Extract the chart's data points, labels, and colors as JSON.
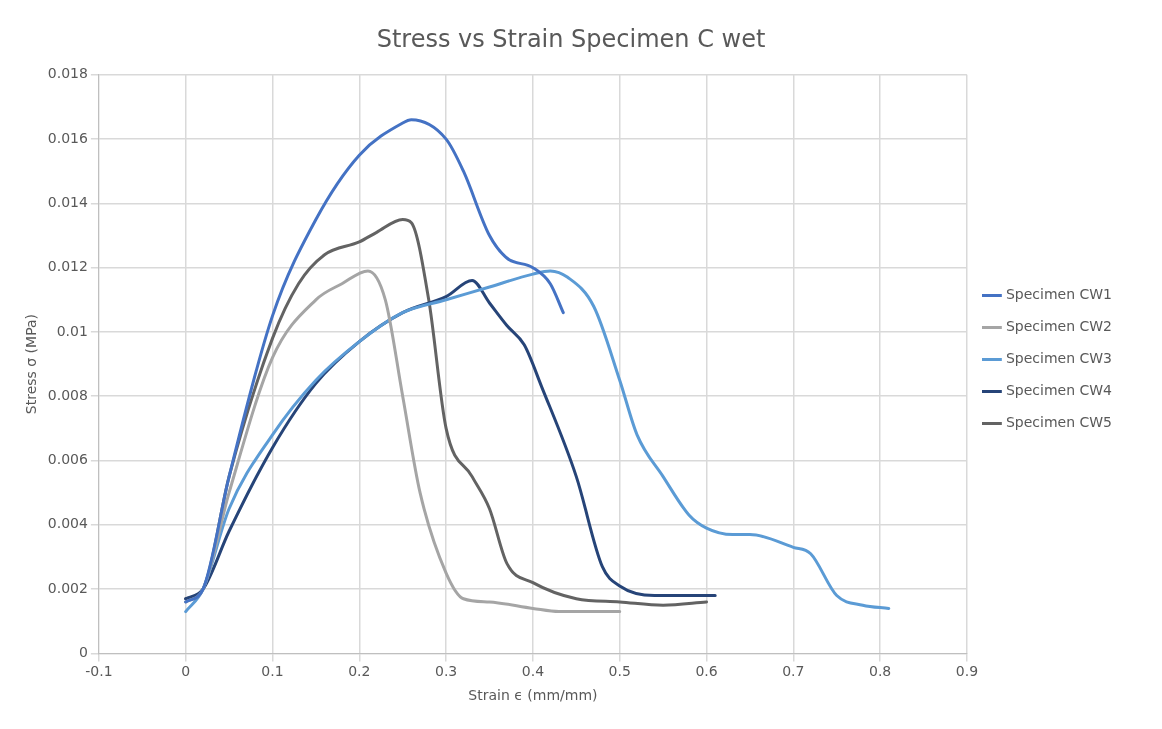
{
  "chart_data": {
    "type": "line",
    "title": "Stress vs Strain Specimen C wet",
    "xlabel": "Strain ϵ (mm/mm)",
    "ylabel": "Stress σ (MPa)",
    "xlim": [
      -0.1,
      0.9
    ],
    "xticks": [
      -0.1,
      0,
      0.1,
      0.2,
      0.3,
      0.4,
      0.5,
      0.6,
      0.7,
      0.8,
      0.9
    ],
    "ylim": [
      0,
      0.018
    ],
    "yticks": [
      0,
      0.002,
      0.004,
      0.006,
      0.008,
      0.01,
      0.012,
      0.014,
      0.016,
      0.018
    ],
    "grid": true,
    "legend": "right",
    "marker": "none",
    "line_style": "solid",
    "series": [
      {
        "name": "Specimen CW1",
        "color": "#4472c4",
        "x": [
          0,
          0.02,
          0.05,
          0.1,
          0.15,
          0.2,
          0.25,
          0.26,
          0.3,
          0.32,
          0.35,
          0.37,
          0.4,
          0.42,
          0.435
        ],
        "values": [
          0.0016,
          0.002,
          0.0055,
          0.0105,
          0.0135,
          0.0155,
          0.0165,
          0.0166,
          0.016,
          0.015,
          0.013,
          0.0123,
          0.012,
          0.0115,
          0.0106
        ]
      },
      {
        "name": "Specimen CW2",
        "color": "#a5a5a5",
        "x": [
          0,
          0.02,
          0.05,
          0.1,
          0.15,
          0.18,
          0.21,
          0.23,
          0.25,
          0.27,
          0.3,
          0.32,
          0.35,
          0.4,
          0.43,
          0.5
        ],
        "values": [
          0.0016,
          0.002,
          0.005,
          0.0092,
          0.011,
          0.0115,
          0.0119,
          0.011,
          0.008,
          0.005,
          0.0025,
          0.0017,
          0.0016,
          0.0014,
          0.0013,
          0.0013
        ]
      },
      {
        "name": "Specimen CW3",
        "color": "#5b9bd5",
        "x": [
          0,
          0.02,
          0.05,
          0.1,
          0.15,
          0.2,
          0.25,
          0.3,
          0.35,
          0.4,
          0.42,
          0.44,
          0.47,
          0.5,
          0.52,
          0.55,
          0.58,
          0.6,
          0.63,
          0.65,
          0.7,
          0.72,
          0.75,
          0.78,
          0.81
        ],
        "values": [
          0.0013,
          0.002,
          0.0045,
          0.0068,
          0.0085,
          0.0097,
          0.0106,
          0.011,
          0.0114,
          0.0118,
          0.0119,
          0.0117,
          0.0108,
          0.0085,
          0.0068,
          0.0055,
          0.0043,
          0.0039,
          0.0037,
          0.0037,
          0.0033,
          0.0031,
          0.0018,
          0.0015,
          0.0014
        ]
      },
      {
        "name": "Specimen CW4",
        "color": "#264478",
        "x": [
          0,
          0.02,
          0.05,
          0.1,
          0.15,
          0.2,
          0.25,
          0.3,
          0.33,
          0.35,
          0.37,
          0.39,
          0.41,
          0.45,
          0.48,
          0.5,
          0.54,
          0.6,
          0.61
        ],
        "values": [
          0.0017,
          0.002,
          0.0038,
          0.0064,
          0.0084,
          0.0097,
          0.0106,
          0.0111,
          0.0116,
          0.0109,
          0.0102,
          0.0096,
          0.0083,
          0.0055,
          0.0027,
          0.0021,
          0.0018,
          0.0018,
          0.0018
        ]
      },
      {
        "name": "Specimen CW5",
        "color": "#636363",
        "x": [
          0,
          0.02,
          0.05,
          0.1,
          0.13,
          0.16,
          0.2,
          0.22,
          0.25,
          0.26,
          0.28,
          0.3,
          0.33,
          0.35,
          0.37,
          0.4,
          0.45,
          0.5,
          0.55,
          0.6
        ],
        "values": [
          0.0017,
          0.002,
          0.0055,
          0.0098,
          0.0115,
          0.0124,
          0.0128,
          0.0131,
          0.0135,
          0.0134,
          0.011,
          0.007,
          0.0055,
          0.0045,
          0.0028,
          0.0022,
          0.0017,
          0.0016,
          0.0015,
          0.0016
        ]
      }
    ]
  }
}
